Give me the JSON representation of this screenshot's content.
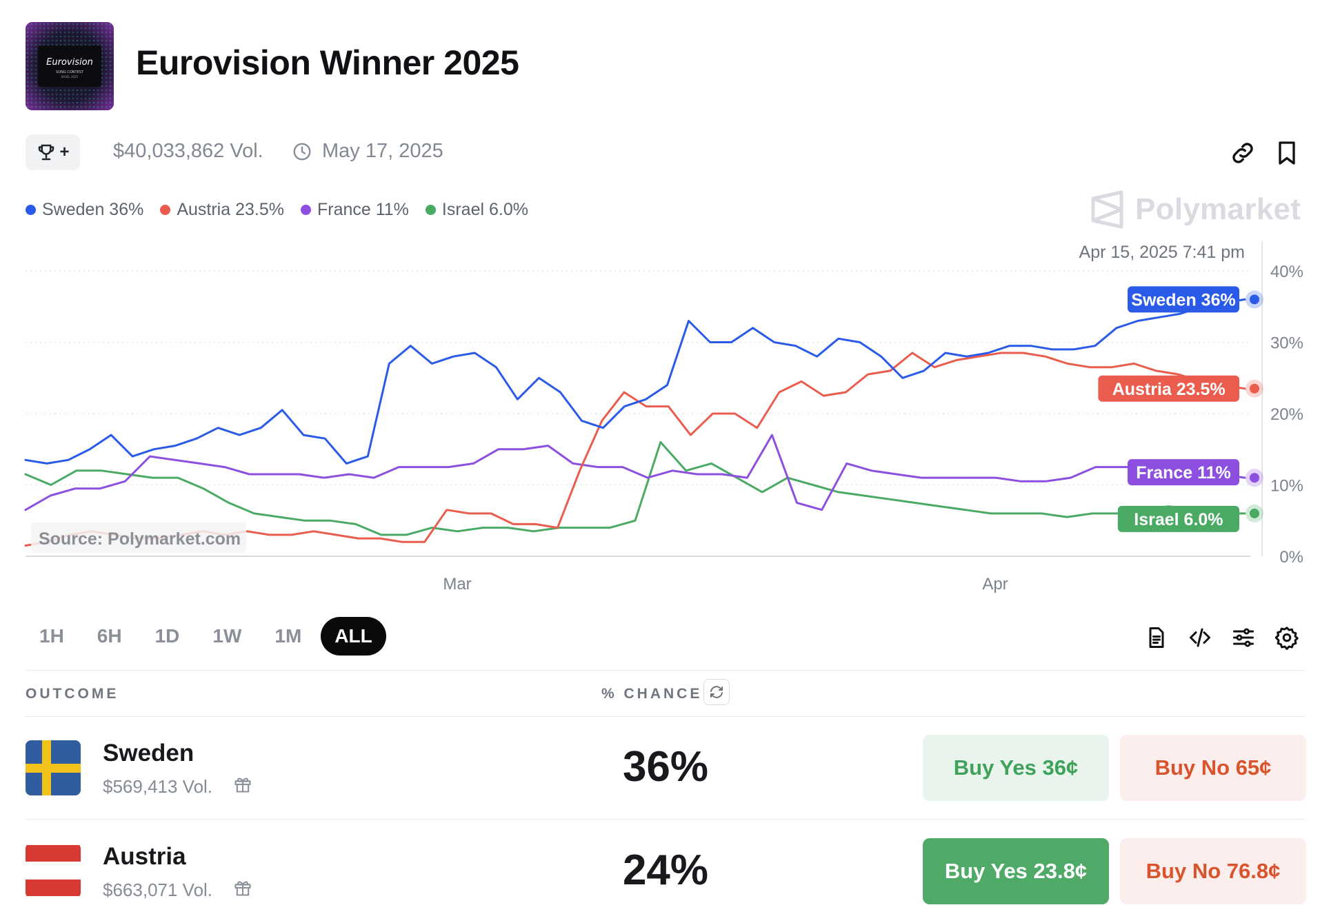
{
  "market": {
    "title": "Eurovision Winner 2025",
    "volume": "$40,033,862 Vol.",
    "end_date": "May 17, 2025",
    "trophy_plus": "+",
    "logo_text": "Eurovision",
    "logo_sub1": "SONG CONTEST",
    "logo_sub2": "BASEL 2025"
  },
  "brand": {
    "name": "Polymarket"
  },
  "legend": [
    {
      "label": "Sweden 36%",
      "color": "#2a5ae8"
    },
    {
      "label": "Austria 23.5%",
      "color": "#ea5c4d"
    },
    {
      "label": "France 11%",
      "color": "#8c4fe0"
    },
    {
      "label": "Israel 6.0%",
      "color": "#4aaa63"
    }
  ],
  "chart": {
    "hover_timestamp": "Apr 15, 2025 7:41 pm",
    "source_label": "Source: Polymarket.com"
  },
  "chart_data": {
    "type": "line",
    "x_ticks": [
      "Mar",
      "Apr"
    ],
    "y_ticks": [
      "0%",
      "10%",
      "20%",
      "30%",
      "40%"
    ],
    "ylim": [
      0,
      40
    ],
    "grid": true,
    "end_labels": [
      "Sweden 36%",
      "Austria 23.5%",
      "France 11%",
      "Israel 6.0%"
    ],
    "series": [
      {
        "name": "Sweden",
        "color": "#2a5ae8",
        "values": [
          13.5,
          13,
          13.5,
          15,
          17,
          14,
          15,
          15.5,
          16.5,
          18,
          17,
          18,
          20.5,
          17,
          16.5,
          13,
          14,
          27,
          29.5,
          27,
          28,
          28.5,
          26.5,
          22,
          25,
          23,
          19,
          18,
          21,
          22,
          24,
          33,
          30,
          30,
          32,
          30,
          29.5,
          28,
          30.5,
          30,
          28,
          25,
          26,
          28.5,
          28,
          28.5,
          29.5,
          29.5,
          29,
          29,
          29.5,
          32,
          33,
          33.5,
          34,
          35,
          35.5,
          36
        ]
      },
      {
        "name": "Austria",
        "color": "#ea5c4d",
        "values": [
          1.5,
          2,
          3,
          3.5,
          3,
          2.5,
          2.5,
          3,
          3.5,
          3,
          3.5,
          3,
          3,
          3.5,
          3,
          2.5,
          2.5,
          2,
          2,
          6.5,
          6,
          6,
          4.5,
          4.5,
          4,
          12,
          19,
          23,
          21,
          21,
          17,
          20,
          20,
          18,
          23,
          24.5,
          22.5,
          23,
          25.5,
          26,
          28.5,
          26.5,
          27.5,
          28,
          28.5,
          28.5,
          28,
          27,
          26.5,
          26.5,
          27,
          26,
          25.5,
          24.5,
          24,
          23.5
        ]
      },
      {
        "name": "France",
        "color": "#8c4fe0",
        "values": [
          6.5,
          8.5,
          9.5,
          9.5,
          10.5,
          14,
          13.5,
          13,
          12.5,
          11.5,
          11.5,
          11.5,
          11,
          11.5,
          11,
          12.5,
          12.5,
          12.5,
          13,
          15,
          15,
          15.5,
          13,
          12.5,
          12.5,
          11,
          12,
          11.5,
          11.5,
          11,
          17,
          7.5,
          6.5,
          13,
          12,
          11.5,
          11,
          11,
          11,
          11,
          10.5,
          10.5,
          11,
          12.5,
          12.5,
          12.5,
          12.5,
          11.5,
          11.5,
          11
        ]
      },
      {
        "name": "Israel",
        "color": "#4aaa63",
        "values": [
          11.5,
          10,
          12,
          12,
          11.5,
          11,
          11,
          9.5,
          7.5,
          6,
          5.5,
          5,
          5,
          4.5,
          3,
          3,
          4,
          3.5,
          4,
          4,
          3.5,
          4,
          4,
          4,
          5,
          16,
          12,
          13,
          11,
          9,
          11,
          10,
          9,
          8.5,
          8,
          7.5,
          7,
          6.5,
          6,
          6,
          6,
          5.5,
          6,
          6,
          6.5,
          7,
          6.5,
          6,
          6
        ]
      }
    ]
  },
  "range_tabs": [
    "1H",
    "6H",
    "1D",
    "1W",
    "1M",
    "ALL"
  ],
  "table": {
    "col_outcome": "OUTCOME",
    "col_chance": "% CHANCE",
    "rows": [
      {
        "name": "Sweden",
        "volume": "$569,413 Vol.",
        "chance": "36%",
        "buy_yes": "Buy Yes 36¢",
        "buy_no": "Buy No 65¢"
      },
      {
        "name": "Austria",
        "volume": "$663,071 Vol.",
        "chance": "24%",
        "buy_yes": "Buy Yes 23.8¢",
        "buy_no": "Buy No 76.8¢"
      }
    ]
  }
}
